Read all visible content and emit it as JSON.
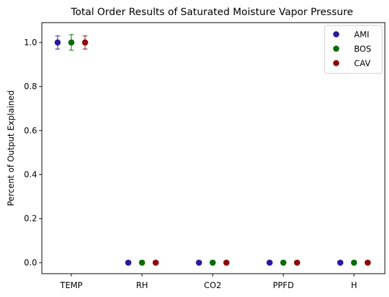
{
  "chart_data": {
    "type": "scatter",
    "title": "Total Order Results of Saturated Moisture Vapor Pressure",
    "xlabel": "",
    "ylabel": "Percent of Output Explained",
    "categories": [
      "TEMP",
      "RH",
      "CO2",
      "PPFD",
      "H"
    ],
    "ylim": [
      -0.05,
      1.09
    ],
    "yticks": [
      0.0,
      0.2,
      0.4,
      0.6,
      0.8,
      1.0
    ],
    "ytick_labels": [
      "0.0",
      "0.2",
      "0.4",
      "0.6",
      "0.8",
      "1.0"
    ],
    "grid": false,
    "legend_position": "top-right",
    "series": [
      {
        "name": "AMI",
        "color": "#2a1b9a",
        "values": [
          1.0,
          0.0,
          0.0,
          0.0,
          0.0
        ],
        "errors": [
          0.03,
          0,
          0,
          0,
          0
        ]
      },
      {
        "name": "BOS",
        "color": "#0a6b0a",
        "values": [
          1.0,
          0.0,
          0.0,
          0.0,
          0.0
        ],
        "errors": [
          0.035,
          0,
          0,
          0,
          0
        ]
      },
      {
        "name": "CAV",
        "color": "#8b0a0a",
        "values": [
          1.0,
          0.0,
          0.0,
          0.0,
          0.0
        ],
        "errors": [
          0.03,
          0,
          0,
          0,
          0
        ]
      }
    ]
  }
}
